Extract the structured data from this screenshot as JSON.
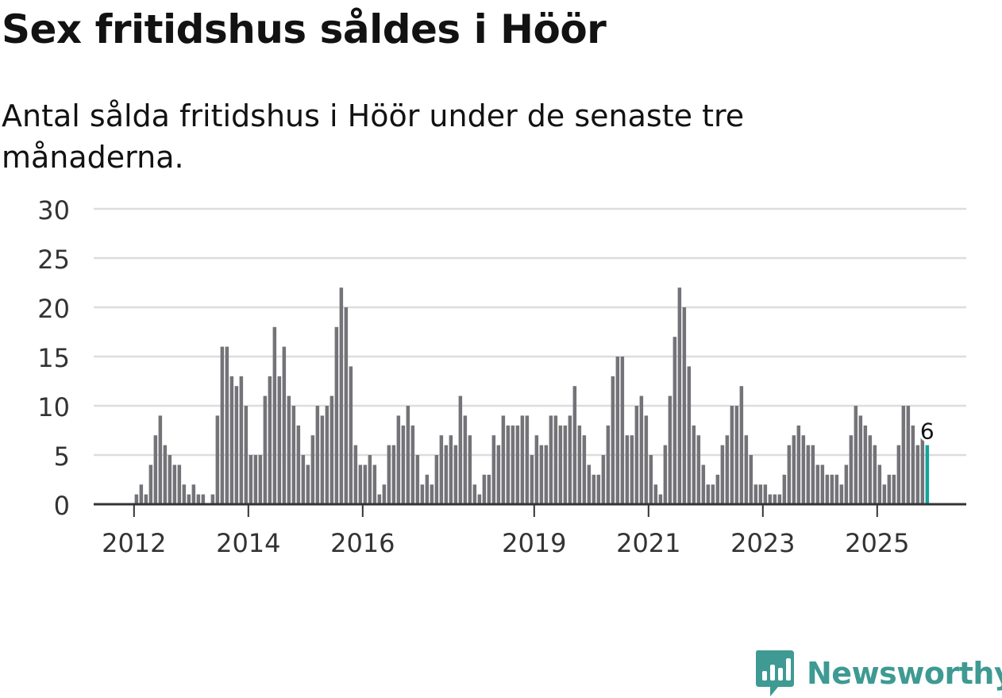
{
  "title": "Sex fritidshus såldes i Höör",
  "subtitle": "Antal sålda fritidshus i Höör under de senaste tre månaderna.",
  "brand": {
    "name": "Newsworthy",
    "color": "#3e9a92"
  },
  "colors": {
    "bar": "#747378",
    "highlight": "#13a39a",
    "grid": "#dddddd",
    "axis": "#333333"
  },
  "chart_data": {
    "type": "bar",
    "title": "Sex fritidshus såldes i Höör",
    "xlabel": "",
    "ylabel": "",
    "ylim": [
      0,
      30
    ],
    "yticks": [
      0,
      5,
      10,
      15,
      20,
      25,
      30
    ],
    "grid": true,
    "start": "2011-01",
    "xticks": [
      {
        "label": "2012",
        "index": 12
      },
      {
        "label": "2014",
        "index": 36
      },
      {
        "label": "2016",
        "index": 60
      },
      {
        "label": "2019",
        "index": 96
      },
      {
        "label": "2021",
        "index": 120
      },
      {
        "label": "2023",
        "index": 144
      },
      {
        "label": "2025",
        "index": 168
      }
    ],
    "values": [
      null,
      null,
      null,
      null,
      null,
      null,
      null,
      null,
      null,
      null,
      null,
      null,
      1,
      2,
      1,
      4,
      7,
      9,
      6,
      5,
      4,
      4,
      2,
      1,
      2,
      1,
      1,
      null,
      1,
      9,
      16,
      16,
      13,
      12,
      13,
      10,
      5,
      5,
      5,
      11,
      13,
      18,
      13,
      16,
      11,
      10,
      8,
      5,
      4,
      7,
      10,
      9,
      10,
      11,
      18,
      22,
      20,
      14,
      6,
      4,
      4,
      5,
      4,
      1,
      2,
      6,
      6,
      9,
      8,
      10,
      8,
      5,
      2,
      3,
      2,
      5,
      7,
      6,
      7,
      6,
      11,
      9,
      7,
      2,
      1,
      3,
      3,
      7,
      6,
      9,
      8,
      8,
      8,
      9,
      9,
      5,
      7,
      6,
      6,
      9,
      9,
      8,
      8,
      9,
      12,
      8,
      7,
      4,
      3,
      3,
      5,
      8,
      13,
      15,
      15,
      7,
      7,
      10,
      11,
      9,
      5,
      2,
      1,
      6,
      11,
      17,
      22,
      20,
      14,
      8,
      7,
      4,
      2,
      2,
      3,
      6,
      7,
      10,
      10,
      12,
      7,
      5,
      2,
      2,
      2,
      1,
      1,
      1,
      3,
      6,
      7,
      8,
      7,
      6,
      6,
      4,
      4,
      3,
      3,
      3,
      2,
      4,
      7,
      10,
      9,
      8,
      7,
      6,
      4,
      2,
      3,
      3,
      6,
      10,
      10,
      8,
      6,
      7,
      6
    ],
    "highlight": {
      "index": 178,
      "value": 6,
      "label": "6"
    }
  }
}
